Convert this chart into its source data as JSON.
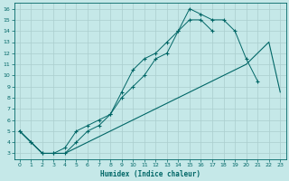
{
  "xlabel": "Humidex (Indice chaleur)",
  "bg_color": "#c5e8e8",
  "grid_color": "#aacece",
  "line_color": "#006666",
  "xlim": [
    -0.5,
    23.5
  ],
  "ylim": [
    2.5,
    16.5
  ],
  "xticks": [
    0,
    1,
    2,
    3,
    4,
    5,
    6,
    7,
    8,
    9,
    10,
    11,
    12,
    13,
    14,
    15,
    16,
    17,
    18,
    19,
    20,
    21,
    22,
    23
  ],
  "yticks": [
    3,
    4,
    5,
    6,
    7,
    8,
    9,
    10,
    11,
    12,
    13,
    14,
    15,
    16
  ],
  "line1_x": [
    0,
    1,
    2,
    3,
    4,
    5,
    6,
    7,
    8,
    9,
    10,
    11,
    12,
    13,
    14,
    15,
    16,
    17,
    18,
    19,
    20,
    21,
    22,
    23
  ],
  "line1_y": [
    5,
    4,
    3,
    3,
    3,
    3.5,
    4,
    4.5,
    5,
    5.5,
    6,
    6.5,
    7,
    7.5,
    8,
    8.5,
    9,
    9.5,
    10,
    10.5,
    11,
    12,
    13,
    8.5
  ],
  "line2_x": [
    0,
    1,
    2,
    3,
    4,
    5,
    6,
    7,
    8,
    9,
    10,
    11,
    12,
    13,
    14,
    15,
    16,
    17,
    18,
    19,
    20,
    21
  ],
  "line2_y": [
    5,
    4,
    3,
    3,
    3.5,
    5,
    5.5,
    6,
    6.5,
    8.5,
    10.5,
    11.5,
    12,
    13,
    14,
    16,
    15.5,
    15,
    15,
    14,
    11.5,
    9.5
  ],
  "line3_x": [
    0,
    1,
    2,
    3,
    4,
    5,
    6,
    7,
    8,
    9,
    10,
    11,
    12,
    13,
    14,
    15,
    16,
    17
  ],
  "line3_y": [
    5,
    4,
    3,
    3,
    3,
    4,
    5,
    5.5,
    6.5,
    8,
    9,
    10,
    11.5,
    12,
    14,
    15,
    15,
    14
  ]
}
